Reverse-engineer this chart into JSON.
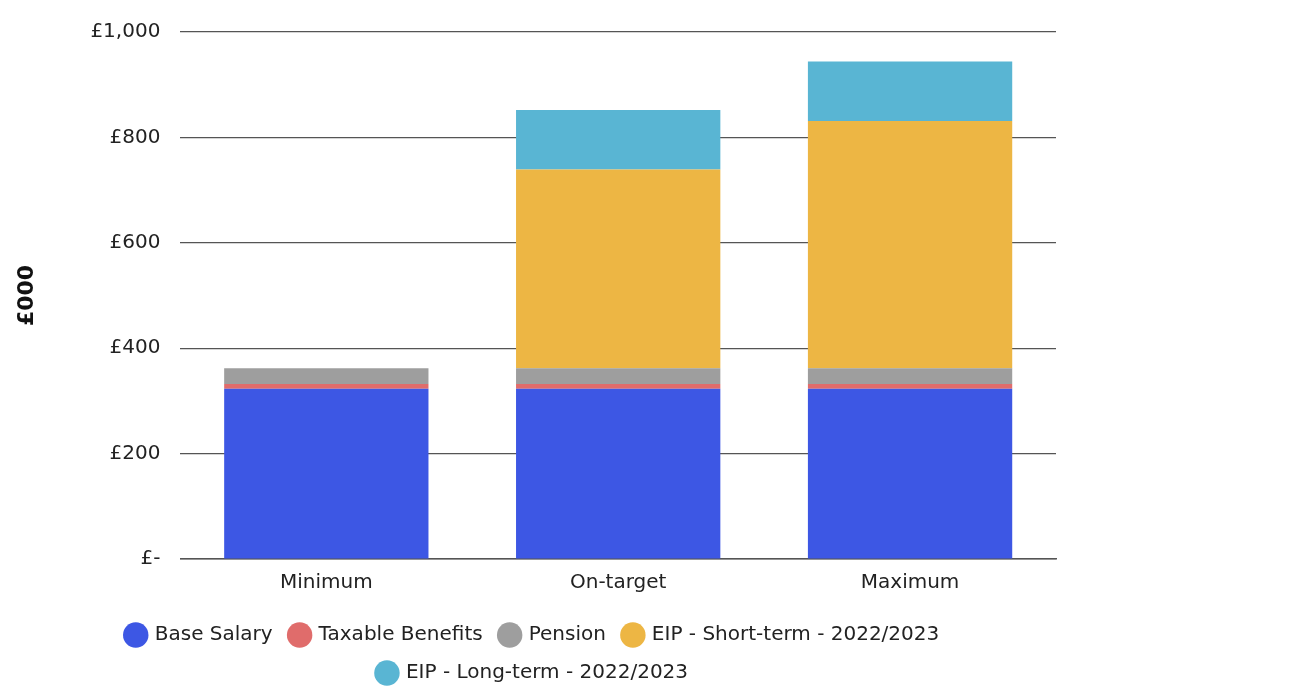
{
  "chart_data": {
    "type": "bar",
    "stacked": true,
    "ylabel": "£000",
    "categories": [
      "Minimum",
      "On-target",
      "Maximum"
    ],
    "series": [
      {
        "name": "Base Salary",
        "color": "#3d57e4",
        "values": [
          323,
          323,
          323
        ]
      },
      {
        "name": "Taxable Benefits",
        "color": "#e06c6b",
        "values": [
          9,
          9,
          9
        ]
      },
      {
        "name": "Pension",
        "color": "#9e9e9e",
        "values": [
          30,
          30,
          30
        ]
      },
      {
        "name": "EIP - Short-term - 2022/2023",
        "color": "#edb644",
        "values": [
          0,
          377,
          469
        ]
      },
      {
        "name": "EIP - Long-term - 2022/2023",
        "color": "#59b5d3",
        "values": [
          0,
          113,
          113
        ]
      }
    ],
    "ylim": [
      0,
      1000
    ],
    "yticks": [
      {
        "value": 0,
        "label": "£-"
      },
      {
        "value": 200,
        "label": "£200"
      },
      {
        "value": 400,
        "label": "£400"
      },
      {
        "value": 600,
        "label": "£600"
      },
      {
        "value": 800,
        "label": "£800"
      },
      {
        "value": 1000,
        "label": "£1,000"
      }
    ],
    "grid": "y",
    "legend": "bottom"
  }
}
